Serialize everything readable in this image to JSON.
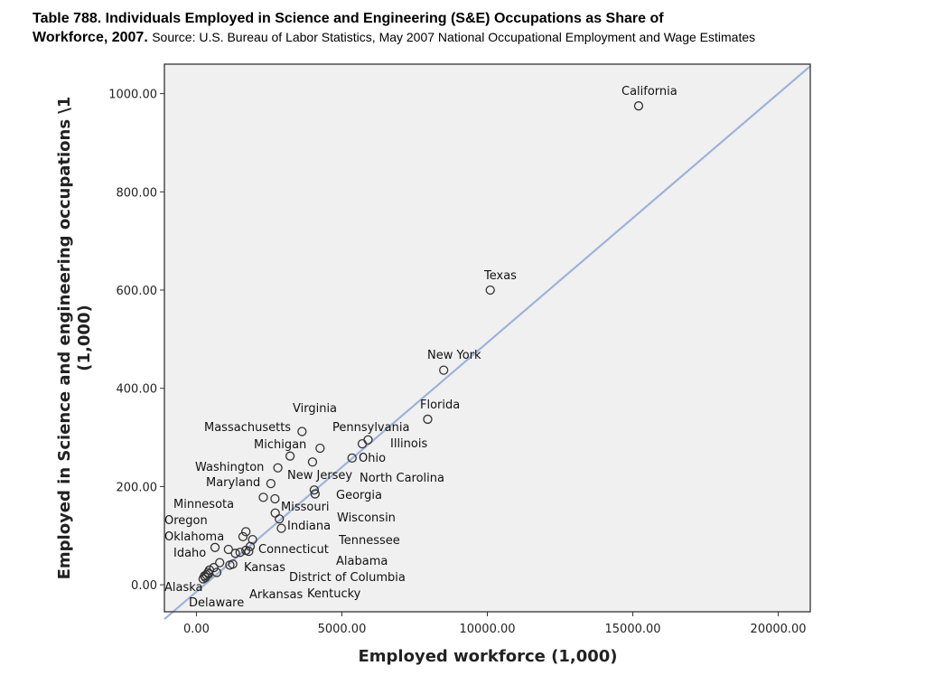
{
  "title": {
    "bold_line1": "Table 788. Individuals Employed in Science and Engineering (S&E) Occupations as Share of",
    "bold_line2": "Workforce, 2007.",
    "source": "Source: U.S. Bureau of Labor Statistics, May 2007 National Occupational Employment and Wage Estimates"
  },
  "chart_data": {
    "type": "scatter",
    "xlabel": "Employed workforce (1,000)",
    "ylabel_line1": "Employed in Science and engineering occupations \\1",
    "ylabel_line2": "(1,000)",
    "xlim": [
      -1100,
      21100
    ],
    "ylim": [
      -55,
      1060
    ],
    "x_ticks": [
      0,
      5000,
      10000,
      15000,
      20000
    ],
    "x_tick_labels": [
      "0.00",
      "5000.00",
      "10000.00",
      "15000.00",
      "20000.00"
    ],
    "y_ticks": [
      0,
      200,
      400,
      600,
      800,
      1000
    ],
    "y_tick_labels": [
      "0.00",
      "200.00",
      "400.00",
      "600.00",
      "800.00",
      "1000.00"
    ],
    "grid": false,
    "background_color": "#f0f0f0",
    "marker_color": "#333333",
    "fit_line": {
      "color": "#9db3d9",
      "x": [
        -1100,
        21100
      ],
      "y": [
        -70,
        1056
      ]
    },
    "points": [
      {
        "label": "California",
        "x": 15200,
        "y": 975
      },
      {
        "label": "Texas",
        "x": 10100,
        "y": 600
      },
      {
        "label": "New York",
        "x": 8500,
        "y": 437
      },
      {
        "label": "Florida",
        "x": 7950,
        "y": 337
      },
      {
        "label": "Virginia",
        "x": 3630,
        "y": 312
      },
      {
        "label": "Pennsylvania",
        "x": 5900,
        "y": 295
      },
      {
        "label": "Illinois",
        "x": 5700,
        "y": 287
      },
      {
        "label": "Massachusetts",
        "x": 3220,
        "y": 262
      },
      {
        "label": "Michigan",
        "x": 4250,
        "y": 278
      },
      {
        "label": "Ohio",
        "x": 5350,
        "y": 258
      },
      {
        "label": "Washington",
        "x": 2800,
        "y": 238
      },
      {
        "label": "New Jersey",
        "x": 3990,
        "y": 250
      },
      {
        "label": "North Carolina",
        "x": 4050,
        "y": 193
      },
      {
        "label": "Maryland",
        "x": 2560,
        "y": 206
      },
      {
        "label": "Georgia",
        "x": 4080,
        "y": 185
      },
      {
        "label": "Minnesota",
        "x": 2300,
        "y": 178
      },
      {
        "label": "Missouri",
        "x": 2700,
        "y": 175
      },
      {
        "label": "Wisconsin",
        "x": 2710,
        "y": 146
      },
      {
        "label": "Indiana",
        "x": 2850,
        "y": 134
      },
      {
        "label": "Oregon",
        "x": 1700,
        "y": 108
      },
      {
        "label": "Tennessee",
        "x": 2920,
        "y": 115
      },
      {
        "label": "Oklahoma",
        "x": 1600,
        "y": 98
      },
      {
        "label": "Connecticut",
        "x": 1700,
        "y": 70
      },
      {
        "label": "Idaho",
        "x": 640,
        "y": 76
      },
      {
        "label": "Alabama",
        "x": 1930,
        "y": 92
      },
      {
        "label": "Kansas",
        "x": 1340,
        "y": 64
      },
      {
        "label": "District of Columbia",
        "x": 1250,
        "y": 42
      },
      {
        "label": "Arkansas",
        "x": 1150,
        "y": 40
      },
      {
        "label": "Kentucky",
        "x": 1800,
        "y": 68
      },
      {
        "label": "Alaska",
        "x": 310,
        "y": 15
      },
      {
        "label": "Delaware",
        "x": 420,
        "y": 22
      },
      {
        "label": "",
        "x": 230,
        "y": 12
      },
      {
        "label": "",
        "x": 280,
        "y": 18
      },
      {
        "label": "",
        "x": 350,
        "y": 20
      },
      {
        "label": "",
        "x": 400,
        "y": 25
      },
      {
        "label": "",
        "x": 450,
        "y": 30
      },
      {
        "label": "",
        "x": 600,
        "y": 35
      },
      {
        "label": "",
        "x": 700,
        "y": 25
      },
      {
        "label": "",
        "x": 800,
        "y": 45
      },
      {
        "label": "",
        "x": 1100,
        "y": 72
      },
      {
        "label": "",
        "x": 1500,
        "y": 66
      },
      {
        "label": "",
        "x": 1850,
        "y": 78
      }
    ]
  }
}
